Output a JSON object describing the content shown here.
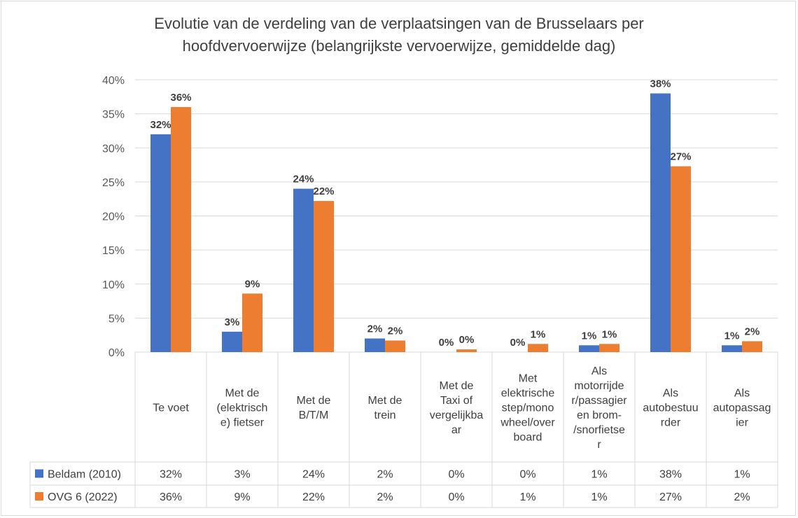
{
  "chart_data": {
    "type": "bar",
    "title": "Evolutie van de verdeling van de verplaatsingen van de Brusselaars per hoofdvervoerwijze (belangrijkste vervoerwijze, gemiddelde dag)",
    "title_lines": [
      "Evolutie van de verdeling van de verplaatsingen van de Brusselaars per",
      "hoofdvervoerwijze (belangrijkste vervoerwijze, gemiddelde dag)"
    ],
    "categories": [
      "Te voet",
      "Met de (elektrisch e) fietser",
      "Met de B/T/M",
      "Met de trein",
      "Met de Taxi of vergelijkba ar",
      "Met elektrische step/mono wheel/over board",
      "Als motorrijde r/passagier en brom- /snorfietse r",
      "Als autobestuu rder",
      "Als autopassag ier"
    ],
    "category_lines": [
      [
        "Te voet"
      ],
      [
        "Met de",
        "(elektrisch",
        "e) fietser"
      ],
      [
        "Met de",
        "B/T/M"
      ],
      [
        "Met de",
        "trein"
      ],
      [
        "Met de",
        "Taxi of",
        "vergelijkba",
        "ar"
      ],
      [
        "Met",
        "elektrische",
        "step/mono",
        "wheel/over",
        "board"
      ],
      [
        "Als",
        "motorrijde",
        "r/passagier",
        "en brom-",
        "/snorfietse",
        "r"
      ],
      [
        "Als",
        "autobestuu",
        "rder"
      ],
      [
        "Als",
        "autopassag",
        "ier"
      ]
    ],
    "series": [
      {
        "name": "Beldam (2010)",
        "color": "#4472c4",
        "values": [
          32,
          3,
          24,
          2,
          0,
          0,
          1,
          38,
          1
        ],
        "labels": [
          "32%",
          "3%",
          "24%",
          "2%",
          "0%",
          "0%",
          "1%",
          "38%",
          "1%"
        ]
      },
      {
        "name": "OVG 6 (2022)",
        "color": "#ed7d31",
        "values": [
          36,
          8.6,
          22.2,
          1.7,
          0.4,
          1.2,
          1.2,
          27.3,
          1.6
        ],
        "labels": [
          "36%",
          "9%",
          "22%",
          "2%",
          "0%",
          "1%",
          "1%",
          "27%",
          "2%"
        ]
      }
    ],
    "ylim": [
      0,
      40
    ],
    "yticks": [
      "0%",
      "5%",
      "10%",
      "15%",
      "20%",
      "25%",
      "30%",
      "35%",
      "40%"
    ],
    "xlabel": "",
    "ylabel": "",
    "grid": true,
    "legend": "data-table"
  }
}
